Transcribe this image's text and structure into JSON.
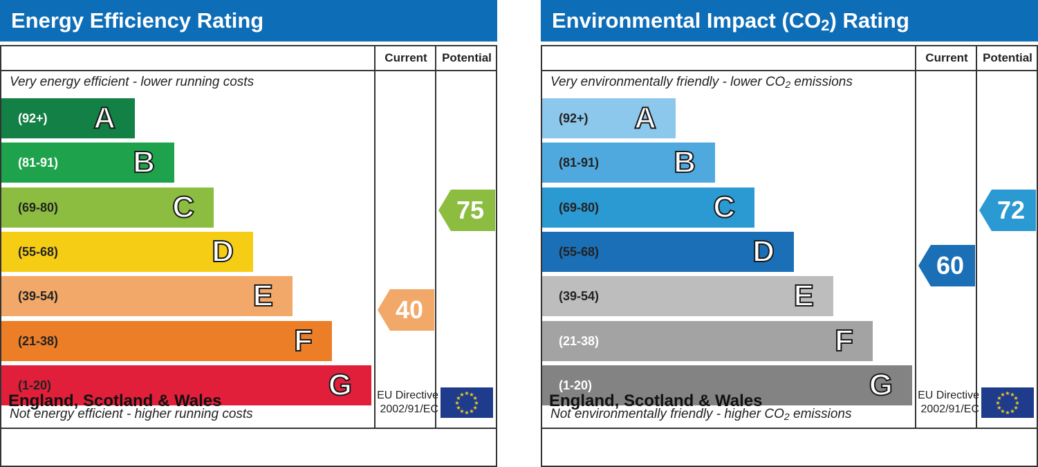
{
  "chart_data": [
    {
      "type": "bar",
      "title": "Energy Efficiency Rating",
      "column_headers": [
        "Current",
        "Potential"
      ],
      "top_caption": "Very energy efficient - lower running costs",
      "bottom_caption": "Not energy efficient - higher running costs",
      "categories": [
        "A",
        "B",
        "C",
        "D",
        "E",
        "F",
        "G"
      ],
      "bands": [
        {
          "letter": "A",
          "range": "(92+)",
          "color": "#138046",
          "light_text": true
        },
        {
          "letter": "B",
          "range": "(81-91)",
          "color": "#1ea34c",
          "light_text": true
        },
        {
          "letter": "C",
          "range": "(69-80)",
          "color": "#8cbd40",
          "light_text": false
        },
        {
          "letter": "D",
          "range": "(55-68)",
          "color": "#f6cd15",
          "light_text": false
        },
        {
          "letter": "E",
          "range": "(39-54)",
          "color": "#f2a869",
          "light_text": false
        },
        {
          "letter": "F",
          "range": "(21-38)",
          "color": "#ec7e27",
          "light_text": false
        },
        {
          "letter": "G",
          "range": "(1-20)",
          "color": "#e11f3a",
          "light_text": false
        }
      ],
      "current": {
        "value": 40,
        "band": "E",
        "color": "#f2a869"
      },
      "potential": {
        "value": 75,
        "band": "C",
        "color": "#8cbd40"
      },
      "footer_country": "England, Scotland & Wales",
      "footer_directive": [
        "EU Directive",
        "2002/91/EC"
      ]
    },
    {
      "type": "bar",
      "title": "Environmental Impact (CO2) Rating",
      "column_headers": [
        "Current",
        "Potential"
      ],
      "top_caption": "Very environmentally friendly - lower CO2 emissions",
      "bottom_caption": "Not environmentally friendly - higher CO2 emissions",
      "categories": [
        "A",
        "B",
        "C",
        "D",
        "E",
        "F",
        "G"
      ],
      "bands": [
        {
          "letter": "A",
          "range": "(92+)",
          "color": "#8cc8ec",
          "light_text": false
        },
        {
          "letter": "B",
          "range": "(81-91)",
          "color": "#4fa9de",
          "light_text": false
        },
        {
          "letter": "C",
          "range": "(69-80)",
          "color": "#2b99d2",
          "light_text": false
        },
        {
          "letter": "D",
          "range": "(55-68)",
          "color": "#1a6fb7",
          "light_text": false
        },
        {
          "letter": "E",
          "range": "(39-54)",
          "color": "#bdbdbd",
          "light_text": false
        },
        {
          "letter": "F",
          "range": "(21-38)",
          "color": "#a3a3a3",
          "light_text": true
        },
        {
          "letter": "G",
          "range": "(1-20)",
          "color": "#838383",
          "light_text": true
        }
      ],
      "current": {
        "value": 60,
        "band": "D",
        "color": "#1a6fb7"
      },
      "potential": {
        "value": 72,
        "band": "C",
        "color": "#2b99d2"
      },
      "footer_country": "England, Scotland & Wales",
      "footer_directive": [
        "EU Directive",
        "2002/91/EC"
      ]
    }
  ]
}
